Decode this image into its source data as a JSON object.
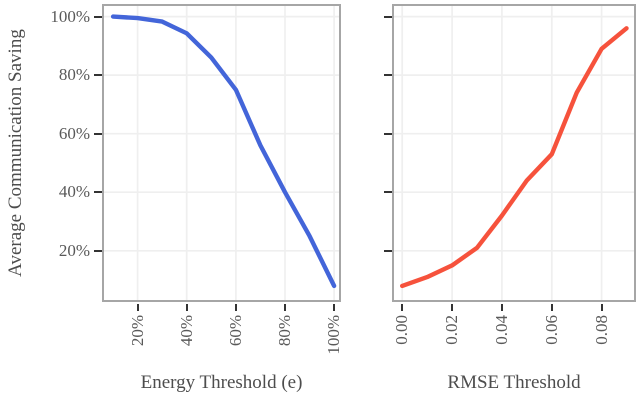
{
  "figure": {
    "y_axis_title": "Average Communication Saving",
    "colors": {
      "background": "#ffffff",
      "panel_border": "#a6a6a6",
      "gridline": "#efefef",
      "tick_mark": "#333333",
      "tick_label_text": "#595959",
      "axis_title_text": "#4d4d4d",
      "energy_line": "#4365d9",
      "rmse_line": "#f6523c"
    }
  },
  "chart_data": [
    {
      "type": "line",
      "title": "",
      "xlabel": "Energy Threshold (e)",
      "ylabel": "Average Communication Saving",
      "grid": true,
      "legend": "none",
      "series": [
        {
          "name": "avg-communication-saving-vs-energy",
          "color": "#4365d9",
          "x": [
            10,
            20,
            30,
            40,
            50,
            60,
            70,
            80,
            90,
            100
          ],
          "y": [
            100,
            99.5,
            98.3,
            94.3,
            86,
            75,
            56,
            40,
            25,
            8
          ]
        }
      ],
      "x_ticks": [
        20,
        40,
        60,
        80,
        100
      ],
      "x_tick_labels": [
        "20%",
        "40%",
        "60%",
        "80%",
        "100%"
      ],
      "y_ticks": [
        20,
        40,
        60,
        80,
        100
      ],
      "y_tick_labels": [
        "20%",
        "40%",
        "60%",
        "80%",
        "100%"
      ],
      "xlim": [
        5.5,
        102.8
      ],
      "ylim": [
        2.5,
        104.3
      ]
    },
    {
      "type": "line",
      "title": "",
      "xlabel": "RMSE Threshold",
      "ylabel": "",
      "grid": true,
      "legend": "none",
      "series": [
        {
          "name": "avg-communication-saving-vs-rmse",
          "color": "#f6523c",
          "x": [
            0,
            0.01,
            0.02,
            0.03,
            0.04,
            0.05,
            0.06,
            0.07,
            0.08,
            0.09
          ],
          "y": [
            8,
            11,
            15,
            21,
            32,
            44,
            53,
            74,
            89,
            96
          ]
        }
      ],
      "x_ticks": [
        0,
        0.02,
        0.04,
        0.06,
        0.08
      ],
      "x_tick_labels": [
        "0.00",
        "0.02",
        "0.04",
        "0.06",
        "0.08"
      ],
      "y_ticks": [
        20,
        40,
        60,
        80,
        100
      ],
      "y_tick_labels": [],
      "xlim": [
        -0.0041,
        0.0938
      ],
      "ylim": [
        2.5,
        104.3
      ]
    }
  ]
}
